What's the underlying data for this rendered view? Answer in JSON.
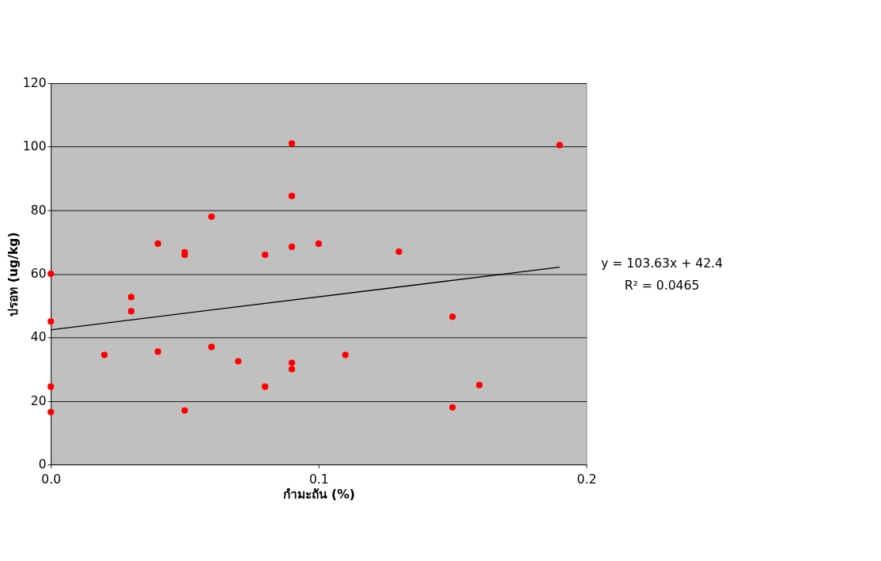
{
  "chart_data": {
    "type": "scatter",
    "xlabel": "กำมะถัน (%)",
    "ylabel": "ปรอท (ug/kg)",
    "xlim": [
      0,
      0.2
    ],
    "xticks": [
      {
        "value": 0,
        "label": "0.0"
      },
      {
        "value": 0.1,
        "label": "0.1"
      },
      {
        "value": 0.2,
        "label": "0.2"
      }
    ],
    "ylim": [
      0,
      120
    ],
    "yticks": [
      0,
      20,
      40,
      60,
      80,
      100,
      120
    ],
    "grid": "y",
    "annotations": [
      "y = 103.63x + 42.4",
      "R² = 0.0465"
    ],
    "series": [
      {
        "color": "#ff0000",
        "marker": "circle",
        "x": [
          0,
          0,
          0,
          0,
          0.02,
          0.03,
          0.03,
          0.04,
          0.04,
          0.05,
          0.05,
          0.05,
          0.06,
          0.06,
          0.07,
          0.08,
          0.08,
          0.09,
          0.09,
          0.09,
          0.09,
          0.09,
          0.1,
          0.11,
          0.13,
          0.15,
          0.15,
          0.16,
          0.19
        ],
        "values": [
          60,
          45,
          24.5,
          16.5,
          34.5,
          52.7,
          48.2,
          69.5,
          35.5,
          66.8,
          66,
          17,
          78,
          37,
          32.5,
          66,
          24.5,
          101,
          84.5,
          68.5,
          32,
          30,
          69.5,
          34.5,
          67,
          46.5,
          18,
          25,
          100.5
        ]
      },
      {
        "type": "line",
        "color": "#000000",
        "marker": "none",
        "x": [
          0,
          0.19
        ],
        "values": [
          42.4,
          62.1
        ]
      }
    ]
  }
}
